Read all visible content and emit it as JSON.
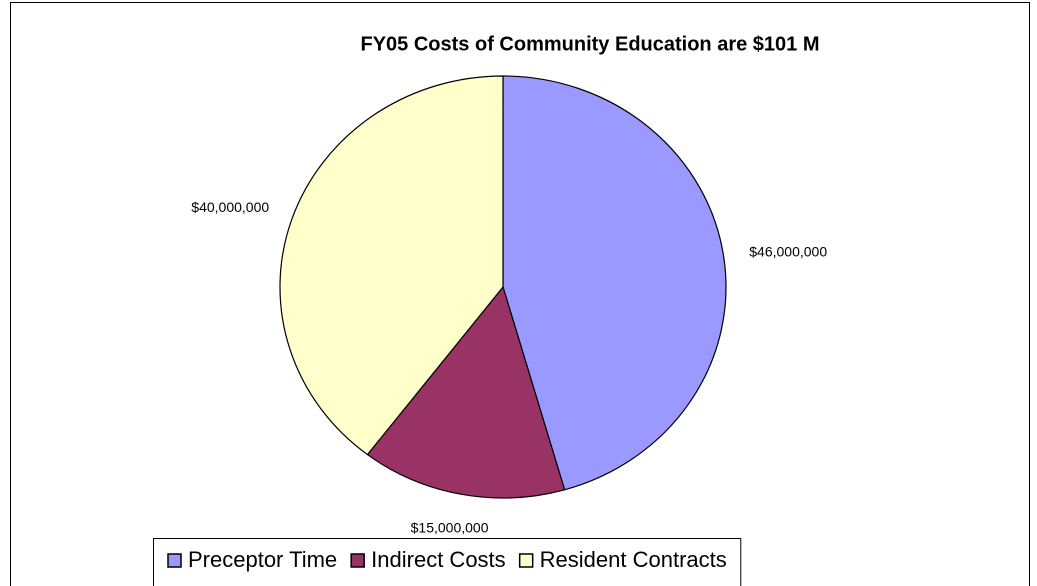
{
  "chart_data": {
    "type": "pie",
    "title": "FY05 Costs of Community Education are $101 M",
    "categories": [
      "Preceptor Time",
      "Indirect Costs",
      "Resident Contracts"
    ],
    "values": [
      46000000,
      15000000,
      40000000
    ],
    "value_labels": [
      "$46,000,000",
      "$15,000,000",
      "$40,000,000"
    ],
    "colors": [
      "#9999ff",
      "#993366",
      "#ffffcc"
    ],
    "legend": "bottom"
  }
}
